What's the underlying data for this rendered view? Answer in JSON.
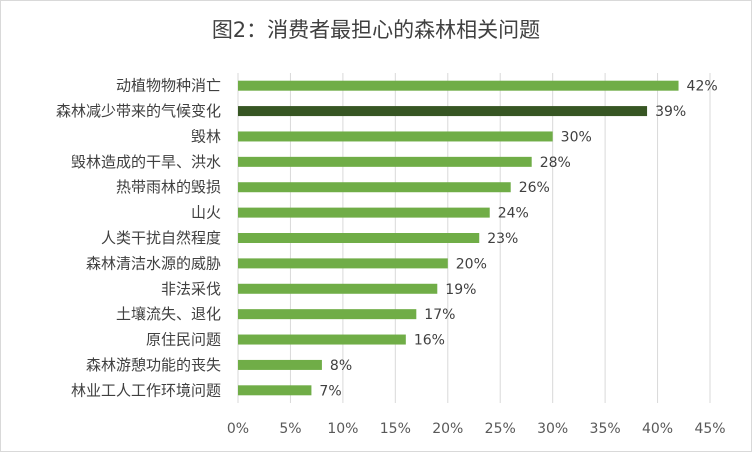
{
  "chart_data": {
    "type": "bar",
    "orientation": "horizontal",
    "title": "图2：消费者最担心的森林相关问题",
    "categories": [
      "动植物物种消亡",
      "森林减少带来的气候变化",
      "毁林",
      "毁林造成的干旱、洪水",
      "热带雨林的毁损",
      "山火",
      "人类干扰自然程度",
      "森林清洁水源的威胁",
      "非法采伐",
      "土壤流失、退化",
      "原住民问题",
      "森林游憩功能的丧失",
      "林业工人工作环境问题"
    ],
    "values": [
      42,
      39,
      30,
      28,
      26,
      24,
      23,
      20,
      19,
      17,
      16,
      8,
      7
    ],
    "value_labels": [
      "42%",
      "39%",
      "30%",
      "28%",
      "26%",
      "24%",
      "23%",
      "20%",
      "19%",
      "17%",
      "16%",
      "8%",
      "7%"
    ],
    "xlim": [
      0,
      45
    ],
    "xticks": [
      "0%",
      "5%",
      "10%",
      "15%",
      "20%",
      "25%",
      "30%",
      "35%",
      "40%",
      "45%"
    ],
    "grid": true,
    "colors": {
      "bar": "#70ad47",
      "highlight": "#375623",
      "highlight_index": 1,
      "grid": "#d9d9d9",
      "text": "#404040"
    }
  }
}
